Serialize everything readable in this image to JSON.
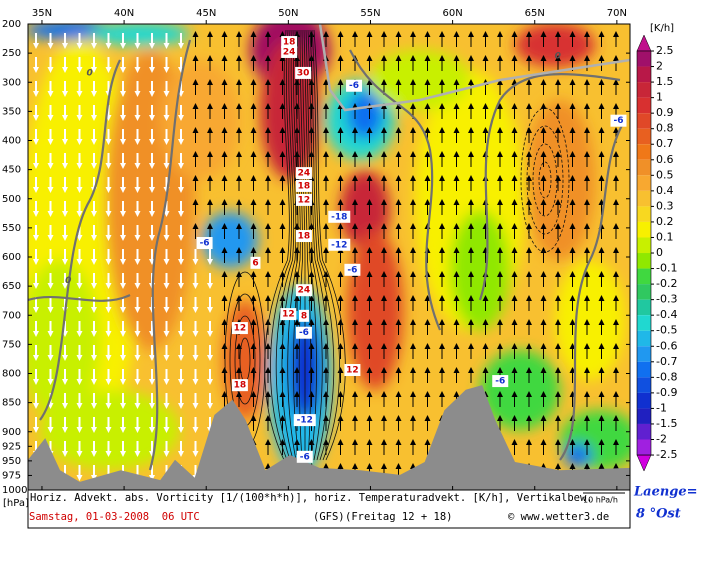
{
  "chart_data": {
    "type": "cross-section",
    "xlim": [
      34.15,
      70.8
    ],
    "xticks": [
      {
        "value": 35,
        "label": "35N"
      },
      {
        "value": 40,
        "label": "40N"
      },
      {
        "value": 45,
        "label": "45N"
      },
      {
        "value": 50,
        "label": "50N"
      },
      {
        "value": 55,
        "label": "55N"
      },
      {
        "value": 60,
        "label": "60N"
      },
      {
        "value": 65,
        "label": "65N"
      },
      {
        "value": 70,
        "label": "70N"
      }
    ],
    "ylim": [
      1000,
      200
    ],
    "yticks": [
      200,
      250,
      300,
      350,
      400,
      450,
      500,
      550,
      600,
      650,
      700,
      750,
      800,
      850,
      900,
      925,
      950,
      975,
      1000
    ],
    "y_label": "[hPa]",
    "terrain": {
      "color": "#8c8c8c",
      "lat": [
        34.15,
        35.2,
        36.1,
        37.3,
        39.8,
        42.2,
        43.1,
        44.3,
        45.5,
        46.6,
        47.4,
        48.6,
        50.1,
        51.9,
        54.4,
        56.8,
        58.3,
        59.5,
        60.8,
        61.8,
        62.6,
        63.8,
        66.5,
        70.8
      ],
      "p": [
        948,
        911,
        966,
        986,
        966,
        983,
        948,
        979,
        871,
        845,
        880,
        966,
        940,
        962,
        966,
        974,
        952,
        863,
        828,
        820,
        880,
        952,
        966,
        962
      ]
    },
    "contour_labels": [
      {
        "value": 18,
        "lat": 50.05,
        "p": 231
      },
      {
        "value": 24,
        "lat": 50.05,
        "p": 248
      },
      {
        "value": 30,
        "lat": 50.9,
        "p": 284
      },
      {
        "value": -6,
        "lat": 54.0,
        "p": 306
      },
      {
        "value": 24,
        "lat": 50.95,
        "p": 456
      },
      {
        "value": 18,
        "lat": 50.95,
        "p": 478
      },
      {
        "value": 12,
        "lat": 50.95,
        "p": 502
      },
      {
        "value": -18,
        "lat": 53.1,
        "p": 531
      },
      {
        "value": 18,
        "lat": 50.95,
        "p": 564
      },
      {
        "value": -12,
        "lat": 53.1,
        "p": 579
      },
      {
        "value": -6,
        "lat": 53.9,
        "p": 622
      },
      {
        "value": 24,
        "lat": 50.95,
        "p": 657
      },
      {
        "value": 12,
        "lat": 50.0,
        "p": 698
      },
      {
        "value": 8,
        "lat": 50.95,
        "p": 701
      },
      {
        "value": -6,
        "lat": 50.95,
        "p": 730
      },
      {
        "value": 12,
        "lat": 53.9,
        "p": 794
      },
      {
        "value": -12,
        "lat": 51.0,
        "p": 880
      },
      {
        "value": -6,
        "lat": 51.0,
        "p": 943
      },
      {
        "value": -6,
        "lat": 44.9,
        "p": 576
      },
      {
        "value": 6,
        "lat": 48.0,
        "p": 610
      },
      {
        "value": 12,
        "lat": 47.05,
        "p": 722
      },
      {
        "value": 18,
        "lat": 47.05,
        "p": 820
      },
      {
        "value": -6,
        "lat": 62.9,
        "p": 813
      },
      {
        "value": -6,
        "lat": 70.1,
        "p": 366
      },
      {
        "value": 0,
        "lat": 37.9,
        "p": 284
      },
      {
        "value": 0,
        "lat": 36.6,
        "p": 640
      },
      {
        "value": 0,
        "lat": 66.4,
        "p": 255
      }
    ],
    "colorbar": {
      "title": "[K/h]",
      "levels": [
        2.5,
        2,
        1.5,
        1,
        0.9,
        0.8,
        0.7,
        0.6,
        0.5,
        0.4,
        0.3,
        0.2,
        0.1,
        0,
        -0.1,
        -0.2,
        -0.3,
        -0.4,
        -0.5,
        -0.6,
        -0.7,
        -0.8,
        -0.9,
        -1,
        -1.5,
        -2,
        -2.5
      ],
      "colors": [
        "#a0106a",
        "#b81848",
        "#c82638",
        "#d83030",
        "#e04828",
        "#e86020",
        "#f07818",
        "#f09028",
        "#f8a830",
        "#f8c030",
        "#f8d820",
        "#f8f000",
        "#c8f000",
        "#90e800",
        "#40d840",
        "#30c860",
        "#20c8a0",
        "#20d8d0",
        "#20b8e8",
        "#2098f0",
        "#1070f0",
        "#1050e0",
        "#1030d0",
        "#2020c0",
        "#6020d0",
        "#a020e0"
      ],
      "over_color": "#c0108c",
      "under_color": "#d000e0"
    },
    "footer": {
      "description": "Horiz. Advekt. abs. Vorticity [1/(100*h*h)], horiz. Temperaturadvekt. [K/h], Vertikalbew.",
      "scale_arrow": "10 hPa/h",
      "date": "Samstag, 01-03-2008  06 UTC",
      "model": "(GFS)",
      "run": "(Freitag 12 + 18)",
      "credit": "© www.wetter3.de",
      "longitude_label": "Laenge=",
      "longitude": "8 °Ost"
    }
  }
}
